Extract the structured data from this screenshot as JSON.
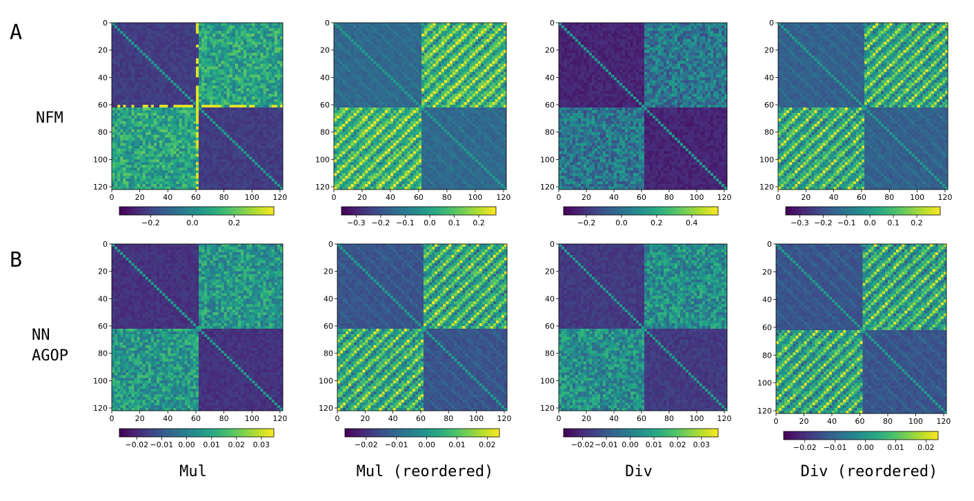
{
  "panels": {
    "a": "A",
    "b": "B"
  },
  "rows": {
    "nfm": "NFM",
    "nn_line1": "NN",
    "nn_line2": "AGOP"
  },
  "columns": [
    "Mul",
    "Mul (reordered)",
    "Div",
    "Div (reordered)"
  ],
  "chart_data": [
    {
      "type": "heatmap",
      "row": "A",
      "column": "Mul",
      "pattern": "block",
      "size": 122,
      "xticks": [
        0,
        20,
        40,
        60,
        80,
        100,
        120
      ],
      "yticks": [
        0,
        20,
        40,
        60,
        80,
        100,
        120
      ],
      "colormap": "viridis",
      "vmin": -0.35,
      "vmax": 0.39,
      "colorbar_ticks": [
        -0.2,
        0.0,
        0.2
      ],
      "colorbar_labels": [
        "−0.2",
        "0.0",
        "0.2"
      ],
      "blocks": {
        "diag_mean": -0.22,
        "offdiag_mean": 0.08
      }
    },
    {
      "type": "heatmap",
      "row": "A",
      "column": "Mul (reordered)",
      "pattern": "stripes",
      "size": 122,
      "xticks": [
        0,
        20,
        40,
        60,
        80,
        100,
        120
      ],
      "yticks": [
        0,
        20,
        40,
        60,
        80,
        100,
        120
      ],
      "colormap": "viridis",
      "vmin": -0.36,
      "vmax": 0.27,
      "colorbar_ticks": [
        -0.3,
        -0.2,
        -0.1,
        0.0,
        0.1,
        0.2
      ],
      "colorbar_labels": [
        "−0.3",
        "−0.2",
        "−0.1",
        "0.0",
        "0.1",
        "0.2"
      ],
      "blocks": {
        "diag_mean": -0.15,
        "offdiag_mean": 0.06
      }
    },
    {
      "type": "heatmap",
      "row": "A",
      "column": "Div",
      "pattern": "block",
      "size": 122,
      "xticks": [
        0,
        20,
        40,
        60,
        80,
        100,
        120
      ],
      "yticks": [
        0,
        20,
        40,
        60,
        80,
        100,
        120
      ],
      "colormap": "viridis",
      "vmin": -0.33,
      "vmax": 0.55,
      "colorbar_ticks": [
        -0.2,
        0.0,
        0.2,
        0.4
      ],
      "colorbar_labels": [
        "−0.2",
        "0.0",
        "0.2",
        "0.4"
      ],
      "blocks": {
        "diag_mean": -0.24,
        "offdiag_mean": 0.02
      }
    },
    {
      "type": "heatmap",
      "row": "A",
      "column": "Div (reordered)",
      "pattern": "stripes",
      "size": 122,
      "xticks": [
        0,
        20,
        40,
        60,
        80,
        100,
        120
      ],
      "yticks": [
        0,
        20,
        40,
        60,
        80,
        100,
        120
      ],
      "colormap": "viridis",
      "vmin": -0.36,
      "vmax": 0.3,
      "colorbar_ticks": [
        -0.3,
        -0.2,
        -0.1,
        0.0,
        0.1,
        0.2
      ],
      "colorbar_labels": [
        "−0.3",
        "−0.2",
        "−0.1",
        "0.0",
        "0.1",
        "0.2"
      ],
      "blocks": {
        "diag_mean": -0.16,
        "offdiag_mean": 0.04
      }
    },
    {
      "type": "heatmap",
      "row": "B",
      "column": "Mul",
      "pattern": "block",
      "size": 122,
      "xticks": [
        0,
        20,
        40,
        60,
        80,
        100,
        120
      ],
      "yticks": [
        0,
        20,
        40,
        60,
        80,
        100,
        120
      ],
      "colormap": "viridis",
      "vmin": -0.027,
      "vmax": 0.035,
      "colorbar_ticks": [
        -0.02,
        -0.01,
        0.0,
        0.01,
        0.02,
        0.03
      ],
      "colorbar_labels": [
        "−0.02",
        "−0.01",
        "0.00",
        "0.01",
        "0.02",
        "0.03"
      ],
      "blocks": {
        "diag_mean": -0.018,
        "offdiag_mean": 0.006
      }
    },
    {
      "type": "heatmap",
      "row": "B",
      "column": "Mul (reordered)",
      "pattern": "stripes",
      "size": 122,
      "xticks": [
        0,
        20,
        40,
        60,
        80,
        100,
        120
      ],
      "yticks": [
        0,
        20,
        40,
        60,
        80,
        100,
        120
      ],
      "colormap": "viridis",
      "vmin": -0.027,
      "vmax": 0.024,
      "colorbar_ticks": [
        -0.02,
        -0.01,
        0.0,
        0.01,
        0.02
      ],
      "colorbar_labels": [
        "−0.02",
        "−0.01",
        "0.00",
        "0.01",
        "0.02"
      ],
      "blocks": {
        "diag_mean": -0.014,
        "offdiag_mean": 0.004
      }
    },
    {
      "type": "heatmap",
      "row": "B",
      "column": "Div",
      "pattern": "block",
      "size": 122,
      "xticks": [
        0,
        20,
        40,
        60,
        80,
        100,
        120
      ],
      "yticks": [
        0,
        20,
        40,
        60,
        80,
        100,
        120
      ],
      "colormap": "viridis",
      "vmin": -0.028,
      "vmax": 0.037,
      "colorbar_ticks": [
        -0.02,
        -0.01,
        0.0,
        0.01,
        0.02,
        0.03
      ],
      "colorbar_labels": [
        "−0.02",
        "−0.01",
        "0.00",
        "0.01",
        "0.02",
        "0.03"
      ],
      "blocks": {
        "diag_mean": -0.017,
        "offdiag_mean": 0.004
      }
    },
    {
      "type": "heatmap",
      "row": "B",
      "column": "Div (reordered)",
      "pattern": "stripes",
      "size": 122,
      "xticks": [
        0,
        20,
        40,
        60,
        80,
        100,
        120
      ],
      "yticks": [
        0,
        20,
        40,
        60,
        80,
        100,
        120
      ],
      "colormap": "viridis",
      "vmin": -0.027,
      "vmax": 0.024,
      "colorbar_ticks": [
        -0.02,
        -0.01,
        0.0,
        0.01,
        0.02
      ],
      "colorbar_labels": [
        "−0.02",
        "−0.01",
        "0.00",
        "0.01",
        "0.02"
      ],
      "blocks": {
        "diag_mean": -0.014,
        "offdiag_mean": 0.003
      }
    }
  ]
}
